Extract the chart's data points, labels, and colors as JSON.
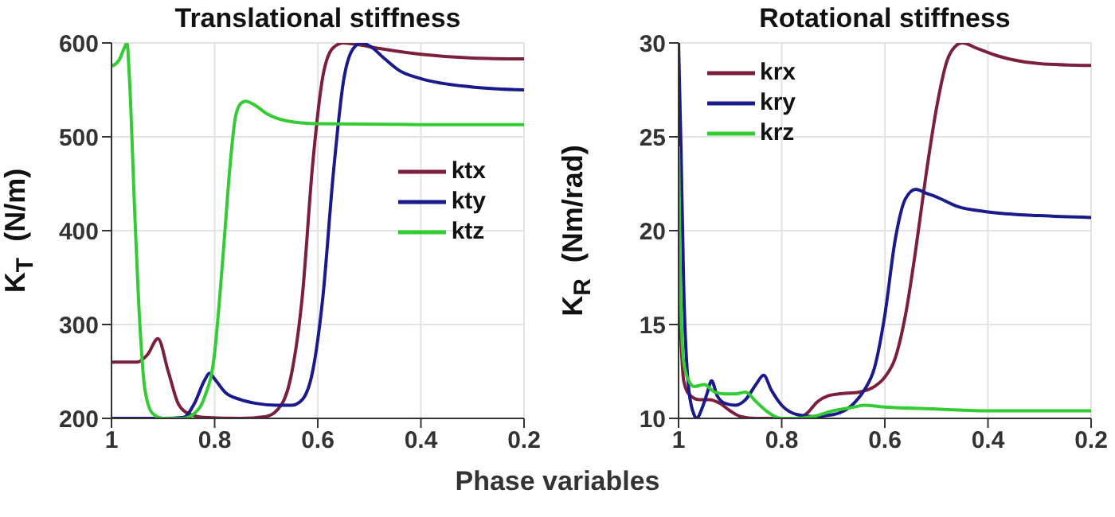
{
  "chart_data": [
    {
      "type": "line",
      "title": "Translational stiffness",
      "xlabel": "Phase variables",
      "ylabel": "K$_{T}$  (N/m)",
      "xlim": [
        1,
        0.2
      ],
      "xticks": [
        1,
        0.8,
        0.6,
        0.4,
        0.2
      ],
      "ylim": [
        200,
        600
      ],
      "yticks": [
        200,
        300,
        400,
        500,
        600
      ],
      "grid": true,
      "legend": "right",
      "series": [
        {
          "name": "ktx",
          "color": "#7b1f3a",
          "x": [
            1,
            0.95,
            0.93,
            0.91,
            0.89,
            0.87,
            0.85,
            0.82,
            0.75,
            0.7,
            0.67,
            0.65,
            0.63,
            0.61,
            0.59,
            0.57,
            0.55,
            0.52,
            0.48,
            0.4,
            0.3,
            0.2
          ],
          "values": [
            260,
            260,
            268,
            285,
            250,
            215,
            205,
            201,
            200,
            202,
            215,
            250,
            330,
            470,
            565,
            595,
            600,
            598,
            594,
            588,
            584,
            583
          ]
        },
        {
          "name": "kty",
          "color": "#1a1a8c",
          "x": [
            1,
            0.9,
            0.86,
            0.84,
            0.82,
            0.81,
            0.8,
            0.78,
            0.75,
            0.72,
            0.68,
            0.65,
            0.63,
            0.61,
            0.59,
            0.57,
            0.55,
            0.53,
            0.515,
            0.5,
            0.47,
            0.44,
            0.4,
            0.3,
            0.2
          ],
          "values": [
            200,
            200,
            201,
            215,
            240,
            248,
            242,
            228,
            220,
            216,
            214,
            214,
            220,
            250,
            330,
            460,
            560,
            595,
            600,
            597,
            583,
            570,
            562,
            553,
            550
          ]
        },
        {
          "name": "ktz",
          "color": "#33cc33",
          "x": [
            1,
            0.985,
            0.975,
            0.97,
            0.965,
            0.955,
            0.945,
            0.935,
            0.92,
            0.9,
            0.86,
            0.84,
            0.82,
            0.8,
            0.79,
            0.78,
            0.77,
            0.76,
            0.75,
            0.74,
            0.72,
            0.7,
            0.66,
            0.6,
            0.4,
            0.2
          ],
          "values": [
            575,
            582,
            595,
            600,
            560,
            420,
            300,
            230,
            205,
            200,
            200,
            205,
            222,
            270,
            330,
            400,
            470,
            520,
            535,
            538,
            533,
            525,
            517,
            514,
            513,
            513
          ]
        }
      ]
    },
    {
      "type": "line",
      "title": "Rotational stiffness",
      "ylabel": "K$_{R}$  (Nm/rad)",
      "xlim": [
        1,
        0.2
      ],
      "xticks": [
        1,
        0.8,
        0.6,
        0.4,
        0.2
      ],
      "ylim": [
        10,
        30
      ],
      "yticks": [
        10,
        15,
        20,
        25,
        30
      ],
      "grid": true,
      "legend": "top left",
      "series": [
        {
          "name": "krx",
          "color": "#7b1f3a",
          "x": [
            1,
            0.995,
            0.99,
            0.98,
            0.96,
            0.94,
            0.92,
            0.9,
            0.88,
            0.85,
            0.8,
            0.77,
            0.75,
            0.73,
            0.71,
            0.69,
            0.65,
            0.62,
            0.6,
            0.58,
            0.56,
            0.54,
            0.52,
            0.5,
            0.48,
            0.46,
            0.45,
            0.42,
            0.38,
            0.3,
            0.2
          ],
          "values": [
            17.5,
            14,
            12,
            11.3,
            11,
            11,
            10.8,
            10.4,
            10.1,
            10,
            10,
            10,
            10.3,
            10.9,
            11.2,
            11.3,
            11.4,
            11.7,
            12.2,
            13.2,
            15.5,
            19,
            23,
            26.5,
            29,
            29.9,
            30,
            29.7,
            29.3,
            28.9,
            28.8
          ]
        },
        {
          "name": "kry",
          "color": "#1a1a8c",
          "x": [
            1,
            0.995,
            0.99,
            0.98,
            0.97,
            0.965,
            0.955,
            0.945,
            0.936,
            0.925,
            0.91,
            0.89,
            0.87,
            0.85,
            0.835,
            0.82,
            0.8,
            0.77,
            0.74,
            0.7,
            0.66,
            0.64,
            0.62,
            0.6,
            0.58,
            0.56,
            0.54,
            0.52,
            0.5,
            0.46,
            0.4,
            0.3,
            0.2
          ],
          "values": [
            30,
            24,
            17,
            11.5,
            10.2,
            10,
            10.5,
            11.3,
            12,
            11.2,
            10.8,
            10.7,
            11,
            11.8,
            12.3,
            11.5,
            10.7,
            10.2,
            10.1,
            10.2,
            10.8,
            11.5,
            12.7,
            15.5,
            19.5,
            21.7,
            22.2,
            22,
            21.8,
            21.3,
            21,
            20.8,
            20.7
          ]
        },
        {
          "name": "krz",
          "color": "#33cc33",
          "x": [
            1,
            0.997,
            0.99,
            0.98,
            0.97,
            0.95,
            0.93,
            0.91,
            0.89,
            0.87,
            0.85,
            0.83,
            0.8,
            0.77,
            0.74,
            0.7,
            0.66,
            0.64,
            0.6,
            0.5,
            0.4,
            0.2
          ],
          "values": [
            24.5,
            18,
            13,
            12,
            11.7,
            11.8,
            11.4,
            11.3,
            11.3,
            11.4,
            10.9,
            10.4,
            10,
            10,
            10.1,
            10.4,
            10.6,
            10.7,
            10.6,
            10.5,
            10.4,
            10.4
          ]
        }
      ]
    }
  ]
}
